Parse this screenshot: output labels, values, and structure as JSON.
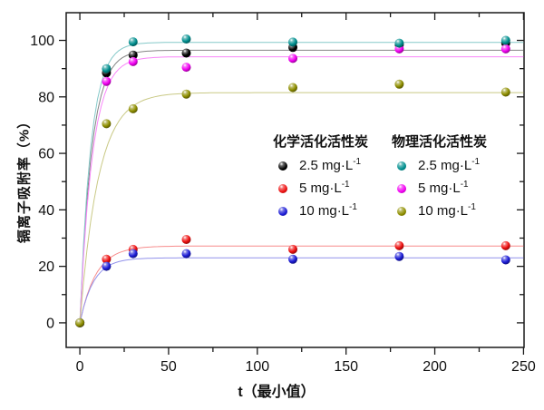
{
  "chart_data": {
    "type": "scatter",
    "title": "",
    "xlabel": "t（最小值）",
    "ylabel": "镉离子吸附率（%）",
    "x": [
      0,
      15,
      30,
      60,
      120,
      180,
      240
    ],
    "xticks": [
      0,
      50,
      100,
      150,
      200,
      250
    ],
    "xminor": [
      25,
      75,
      125,
      175,
      225
    ],
    "yticks": [
      0,
      20,
      40,
      60,
      80,
      100
    ],
    "yminor": [
      10,
      30,
      50,
      70,
      90
    ],
    "xlim": [
      -7.7,
      250.3
    ],
    "ylim": [
      -8.7,
      109.8
    ],
    "grid": false,
    "legend_position": "center-right",
    "series": [
      {
        "group": "化学活化活性炭",
        "label": "2.5 mg·L⁻¹",
        "color": "#000000",
        "values": [
          0,
          88.5,
          94.8,
          95.5,
          97.5,
          98.5,
          99
        ],
        "fit": {
          "plateau": 96.5,
          "k": 0.15
        }
      },
      {
        "group": "化学活化活性炭",
        "label": "5 mg·L⁻¹",
        "color": "#ee1010",
        "values": [
          0,
          22.5,
          26,
          29.5,
          26,
          27.3,
          27.3
        ],
        "fit": {
          "plateau": 27.2,
          "k": 0.11
        }
      },
      {
        "group": "化学活化活性炭",
        "label": "10 mg·L⁻¹",
        "color": "#1c1cd6",
        "values": [
          0,
          20,
          24.5,
          24.5,
          22.5,
          23.5,
          22.3
        ],
        "fit": {
          "plateau": 23.0,
          "k": 0.13
        }
      },
      {
        "group": "物理活化活性炭",
        "label": "2.5 mg·L⁻¹",
        "color": "#008f8f",
        "values": [
          0,
          90,
          99.5,
          100.5,
          99.4,
          99,
          100
        ],
        "fit": {
          "plateau": 99.3,
          "k": 0.16
        }
      },
      {
        "group": "物理活化活性炭",
        "label": "5 mg·L⁻¹",
        "color": "#f200f2",
        "values": [
          0,
          85.5,
          92.5,
          90.5,
          93.6,
          97,
          97
        ],
        "fit": {
          "plateau": 94.2,
          "k": 0.14
        }
      },
      {
        "group": "物理活化活性炭",
        "label": "10 mg·L⁻¹",
        "color": "#8f8f00",
        "values": [
          0,
          70.5,
          75.8,
          81,
          83.3,
          84.5,
          81.7
        ],
        "fit": {
          "plateau": 81.5,
          "k": 0.095
        }
      }
    ],
    "legend": {
      "groups": [
        {
          "title": "化学活化活性炭",
          "items": [
            {
              "base": "2.5 mg·L",
              "sup": "-1"
            },
            {
              "base": "5 mg·L",
              "sup": "-1"
            },
            {
              "base": "10 mg·L",
              "sup": "-1"
            }
          ]
        },
        {
          "title": "物理活化活性炭",
          "items": [
            {
              "base": "2.5 mg·L",
              "sup": "-1"
            },
            {
              "base": "5 mg·L",
              "sup": "-1"
            },
            {
              "base": "10 mg·L",
              "sup": "-1"
            }
          ]
        }
      ]
    }
  }
}
